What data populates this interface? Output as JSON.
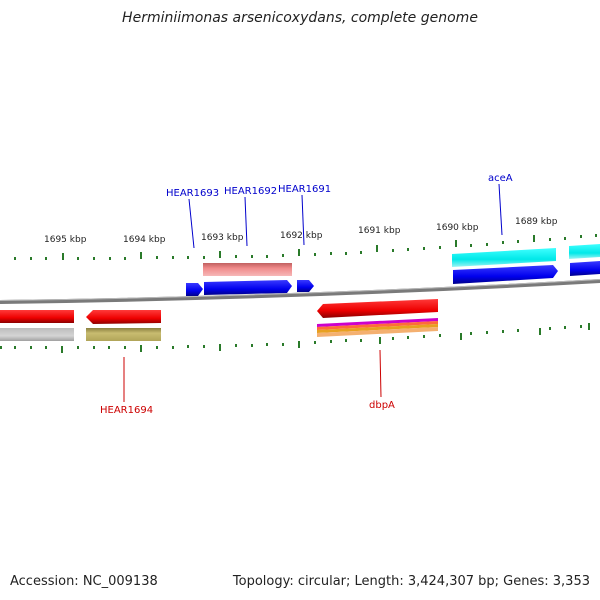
{
  "header": {
    "title": "Herminiimonas arsenicoxydans, complete genome"
  },
  "footer": {
    "accession": "Accession: NC_009138",
    "summary": "Topology: circular; Length: 3,424,307 bp; Genes: 3,353"
  },
  "scale_labels": [
    "1695 kbp",
    "1694 kbp",
    "1693 kbp",
    "1692 kbp",
    "1691 kbp",
    "1690 kbp",
    "1689 kbp"
  ],
  "gene_labels": {
    "hear1693": "HEAR1693",
    "hear1692": "HEAR1692",
    "hear1691": "HEAR1691",
    "acea": "aceA",
    "hear1694": "HEAR1694",
    "dbpa": "dbpA"
  },
  "colors": {
    "tick": "#2a7a2a",
    "backbone": "#808080",
    "forward_gene": "#0000ee",
    "reverse_gene": "#ee0000",
    "blue_label": "#0000cc",
    "red_label": "#cc0000"
  }
}
